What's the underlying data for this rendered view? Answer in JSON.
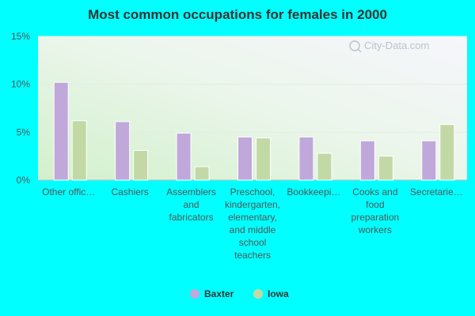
{
  "chart_data": {
    "type": "bar",
    "title": "Most common occupations for females in 2000",
    "xlabel": "",
    "ylabel": "",
    "ylim": [
      0,
      15
    ],
    "yticks": [
      0,
      5,
      10,
      15
    ],
    "ytick_labels": [
      "0%",
      "5%",
      "10%",
      "15%"
    ],
    "categories": [
      [
        "Other offic…"
      ],
      [
        "Cashiers"
      ],
      [
        "Assemblers",
        "and",
        "fabricators"
      ],
      [
        "Preschool,",
        "kindergarten,",
        "elementary,",
        "and middle",
        "school",
        "teachers"
      ],
      [
        "Bookkeepi…"
      ],
      [
        "Cooks and",
        "food",
        "preparation",
        "workers"
      ],
      [
        "Secretarie…"
      ]
    ],
    "series": [
      {
        "name": "Baxter",
        "color": "#c0a8da",
        "values": [
          10.2,
          6.1,
          4.9,
          4.5,
          4.5,
          4.1,
          4.1
        ]
      },
      {
        "name": "Iowa",
        "color": "#c2d9a5",
        "values": [
          6.2,
          3.1,
          1.4,
          4.4,
          2.8,
          2.5,
          5.8
        ]
      }
    ],
    "legend_position": "bottom",
    "grid": true,
    "watermark": "City-Data.com"
  }
}
